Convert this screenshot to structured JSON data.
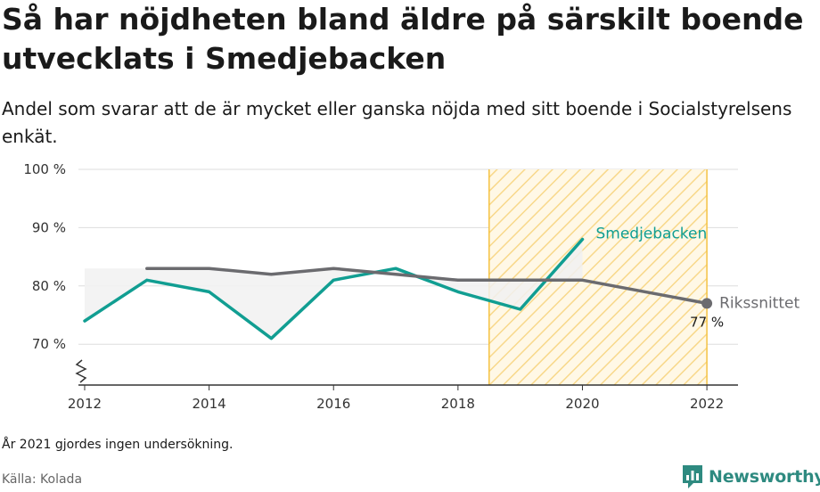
{
  "title": "Så har nöjdheten bland äldre på särskilt boende utvecklats i Smedjebacken",
  "subtitle": "Andel som svarar att de är mycket eller ganska nöjda med sitt boende i Socialstyrelsens enkät.",
  "note": "År 2021 gjordes ingen undersökning.",
  "source": "Källa: Kolada",
  "brand": {
    "name": "Newsworthy",
    "icon": "newsworthy-logo-icon",
    "color": "#2e8a80"
  },
  "chart_data": {
    "type": "line",
    "title": "",
    "xlabel": "",
    "ylabel": "",
    "xlim": [
      2011.9,
      2022.5
    ],
    "ylim": [
      63,
      100
    ],
    "x_ticks": [
      2012,
      2014,
      2016,
      2018,
      2020,
      2022
    ],
    "x_tick_labels": [
      "2012",
      "2014",
      "2016",
      "2018",
      "2020",
      "2022"
    ],
    "y_ticks": [
      70,
      80,
      90,
      100
    ],
    "y_tick_labels": [
      "70 %",
      "80 %",
      "90 %",
      "100 %"
    ],
    "grid": true,
    "axis_break": true,
    "highlight_region": {
      "x": [
        2018.5,
        2022
      ],
      "pattern": "diagonal-hatch",
      "color": "#f5c242"
    },
    "series": [
      {
        "name": "Smedjebacken",
        "color": "#119e92",
        "x": [
          2012,
          2013,
          2014,
          2015,
          2016,
          2017,
          2018,
          2019,
          2020
        ],
        "values": [
          74,
          81,
          79,
          71,
          81,
          83,
          79,
          76,
          88
        ]
      },
      {
        "name": "Rikssnittet",
        "color": "#6b6b6f",
        "x": [
          2013,
          2014,
          2015,
          2016,
          2017,
          2018,
          2019,
          2020,
          2022
        ],
        "values": [
          83,
          83,
          82,
          83,
          82,
          81,
          81,
          81,
          77
        ],
        "end_label": "77 %"
      }
    ]
  }
}
